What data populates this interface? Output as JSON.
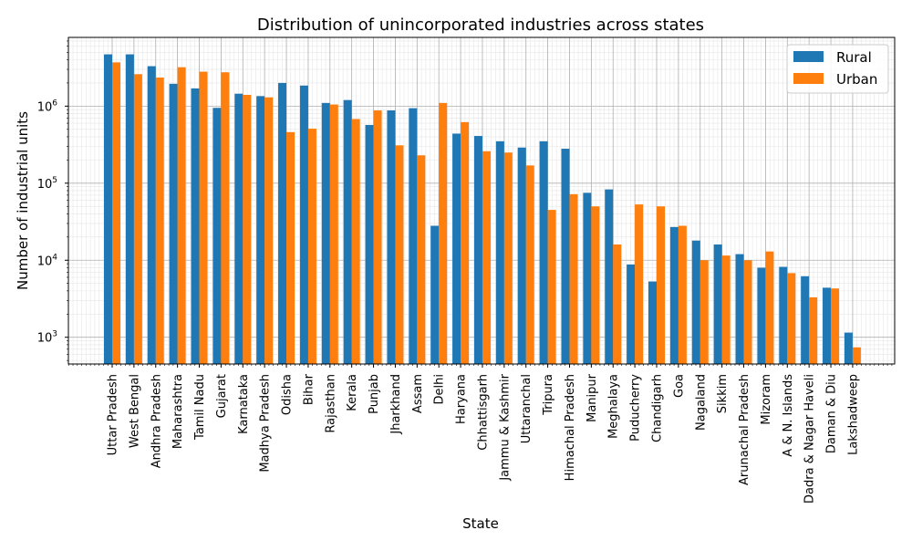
{
  "chart_data": {
    "type": "bar",
    "title": "Distribution of unincorporated industries across states",
    "xlabel": "State",
    "ylabel": "Number of industrial units",
    "yscale": "log",
    "ylim": [
      450,
      7800000
    ],
    "grid": true,
    "legend_position": "top-right",
    "categories": [
      "Uttar Pradesh",
      "West Bengal",
      "Andhra Pradesh",
      "Maharashtra",
      "Tamil Nadu",
      "Gujarat",
      "Karnataka",
      "Madhya Pradesh",
      "Odisha",
      "Bihar",
      "Rajasthan",
      "Kerala",
      "Punjab",
      "Jharkhand",
      "Assam",
      "Delhi",
      "Haryana",
      "Chhattisgarh",
      "Jammu & Kashmir",
      "Uttaranchal",
      "Tripura",
      "Himachal Pradesh",
      "Manipur",
      "Meghalaya",
      "Puducherry",
      "Chandigarh",
      "Goa",
      "Nagaland",
      "Sikkim",
      "Arunachal Pradesh",
      "Mizoram",
      "A & N. Islands",
      "Dadra & Nagar Haveli",
      "Daman & Diu",
      "Lakshadweep"
    ],
    "series": [
      {
        "name": "Rural",
        "color": "#1f77b4",
        "values": [
          4700000,
          4700000,
          3300000,
          1950000,
          1700000,
          950000,
          1450000,
          1350000,
          2000000,
          1850000,
          1100000,
          1200000,
          570000,
          880000,
          940000,
          28000,
          440000,
          410000,
          350000,
          290000,
          350000,
          280000,
          75000,
          83000,
          8800,
          5300,
          27000,
          18000,
          16000,
          12000,
          8000,
          8200,
          6200,
          4400,
          1150
        ]
      },
      {
        "name": "Urban",
        "color": "#ff7f0e",
        "values": [
          3700000,
          2600000,
          2350000,
          3200000,
          2800000,
          2750000,
          1400000,
          1300000,
          460000,
          510000,
          1050000,
          680000,
          880000,
          310000,
          230000,
          1100000,
          620000,
          260000,
          250000,
          170000,
          45000,
          72000,
          50000,
          16000,
          53000,
          50000,
          28000,
          10000,
          11500,
          10000,
          13000,
          6800,
          3300,
          4300,
          740
        ]
      }
    ],
    "yticks": [
      {
        "value": 1000,
        "base": "10",
        "exp": "3"
      },
      {
        "value": 10000,
        "base": "10",
        "exp": "4"
      },
      {
        "value": 100000,
        "base": "10",
        "exp": "5"
      },
      {
        "value": 1000000,
        "base": "10",
        "exp": "6"
      }
    ]
  }
}
